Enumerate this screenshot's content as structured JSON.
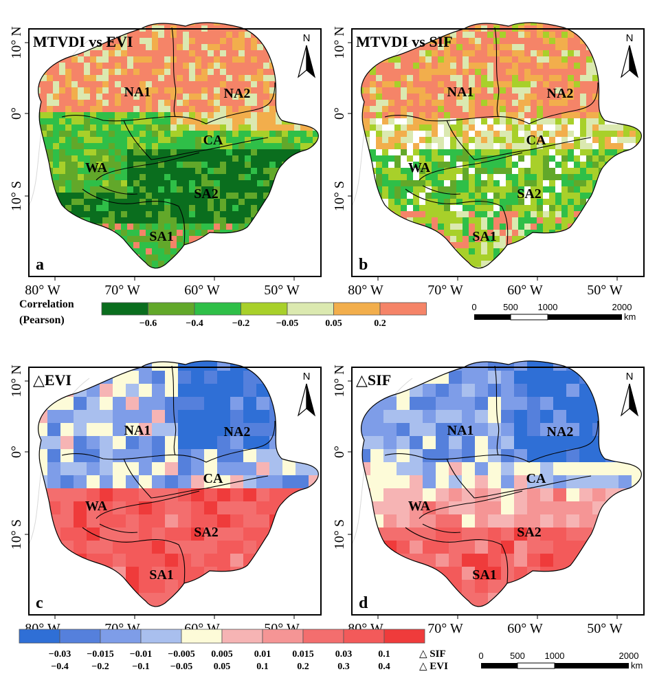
{
  "panels": [
    {
      "letter": "a",
      "title": "MTVDI vs EVI",
      "variant": "corr_evi"
    },
    {
      "letter": "b",
      "title": "MTVDI vs SIF",
      "variant": "corr_sif"
    },
    {
      "letter": "c",
      "title": "△EVI",
      "variant": "delta_evi"
    },
    {
      "letter": "d",
      "title": "△SIF",
      "variant": "delta_sif"
    }
  ],
  "regions": [
    "NA1",
    "NA2",
    "CA",
    "WA",
    "SA2",
    "SA1"
  ],
  "north_label": "N",
  "axes": {
    "x_ticks": [
      "80° W",
      "70° W",
      "60° W",
      "50° W"
    ],
    "y_ticks": [
      "10° N",
      "0°",
      "10° S"
    ]
  },
  "correlation_legend": {
    "title_line1": "Correlation",
    "title_line2": "(Pearson)",
    "colors": [
      "#0a6e1e",
      "#62a82a",
      "#2fbf48",
      "#a8d02a",
      "#dbe9b0",
      "#f2ae4c",
      "#f58468"
    ],
    "breaks": [
      "−0.6",
      "−0.4",
      "−0.2",
      "−0.05",
      "0.05",
      "0.2"
    ]
  },
  "delta_legend": {
    "colors": [
      "#2f6fd6",
      "#5580dc",
      "#7e9de8",
      "#a9bfee",
      "#fdfbd8",
      "#f6b4b4",
      "#f59595",
      "#f36e6e",
      "#f35a5a",
      "#ef3b3b"
    ],
    "sif_breaks": [
      "−0.03",
      "−0.015",
      "−0.01",
      "−0.005",
      "0.005",
      "0.01",
      "0.015",
      "0.03",
      "0.1"
    ],
    "evi_breaks": [
      "−0.4",
      "−0.2",
      "−0.1",
      "−0.05",
      "0.05",
      "0.1",
      "0.2",
      "0.3",
      "0.4"
    ],
    "sif_label": "△ SIF",
    "evi_label": "△ EVI"
  },
  "scalebar": {
    "ticks": [
      "0",
      "500",
      "1000",
      "2000"
    ],
    "unit": "km"
  }
}
